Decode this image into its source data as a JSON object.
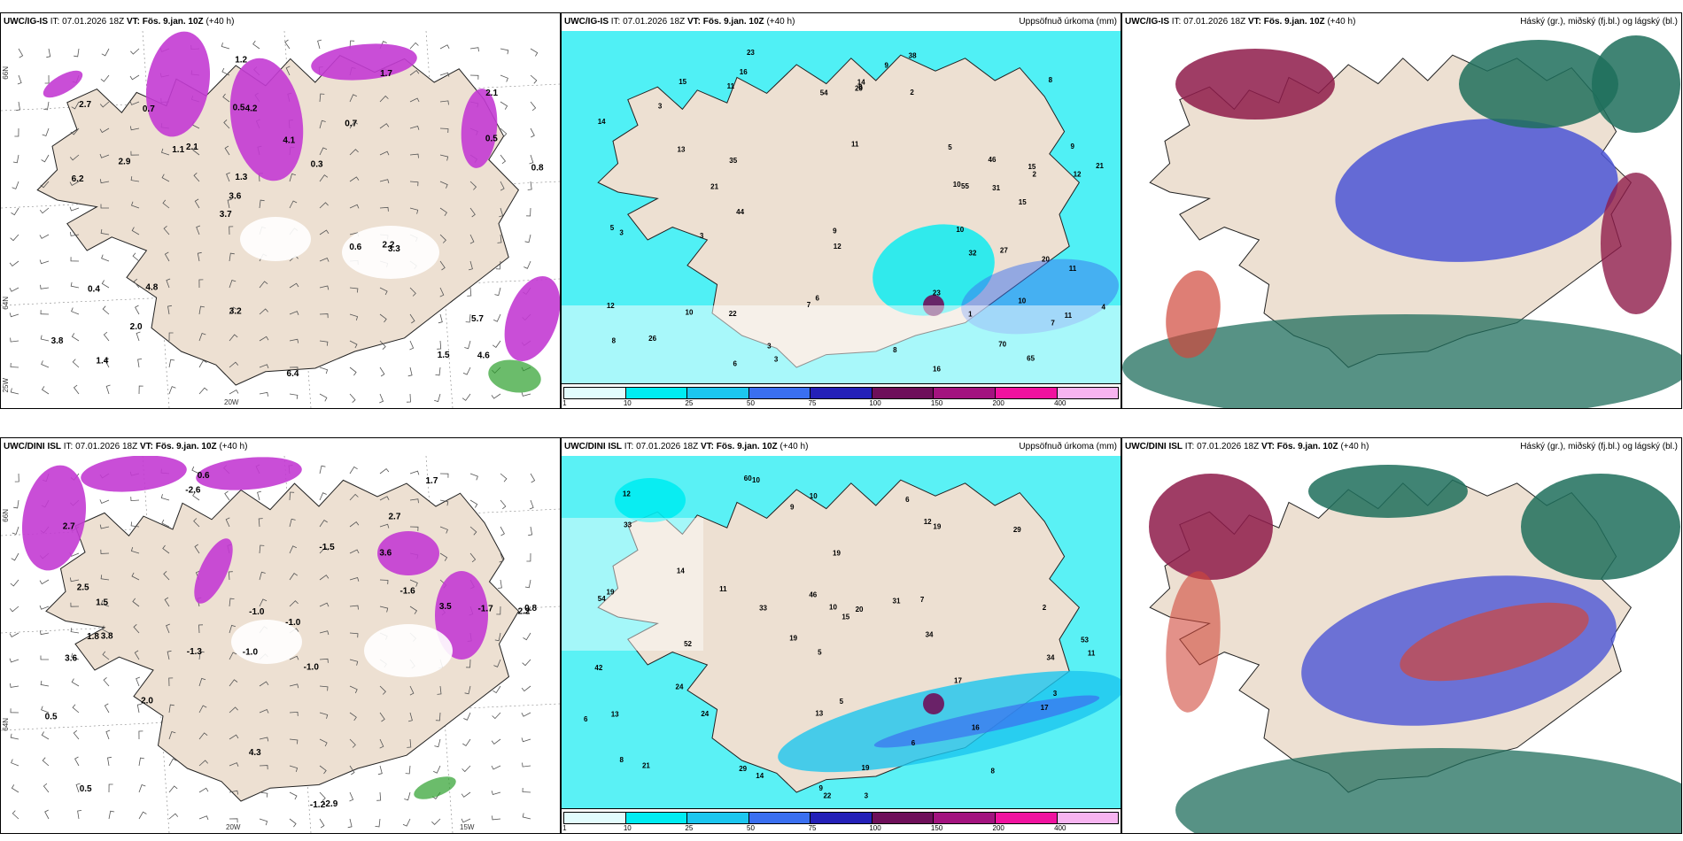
{
  "colors": {
    "land": "#ede0d2",
    "precip_light": "#c8f6f9",
    "precip_cyan": "#00ecf2",
    "snow_magenta": "#c33bd3",
    "cloud_high": "#1f6e5c",
    "cloud_mid": "#8e1b4a",
    "cloud_low": "#4b55d6"
  },
  "panels": [
    {
      "id": "p1",
      "model": "UWC/IG-IS",
      "it_label": "IT:",
      "it_value": "07.01.2026 18Z",
      "vt_label": "VT:",
      "vt_value": "Fös. 9.jan. 10Z",
      "lead": "(+40 h)",
      "right_title": "",
      "axis": {
        "lon_left": "25W",
        "lon_mid": "20W",
        "lat_top": "66N",
        "lat_mid": "64N"
      },
      "labels": [
        "4.6",
        "6.2",
        "2.1",
        "3.7",
        "0.7",
        "1.4",
        "0.5",
        "4.1",
        "0.4",
        "2.1",
        "3.8",
        "2.0",
        "4.2",
        "0.3",
        "3.3",
        "2.7",
        "1.2",
        "0.8",
        "0.6",
        "0.5",
        "3.6",
        "3.2",
        "1.3",
        "0.7",
        "1.7",
        "4.8",
        "1.5",
        "5.7",
        "2.2",
        "6.4",
        "1.1",
        "2.9"
      ]
    },
    {
      "id": "p2",
      "model": "UWC/IG-IS",
      "it_label": "IT:",
      "it_value": "07.01.2026 18Z",
      "vt_label": "VT:",
      "vt_value": "Fös. 9.jan. 10Z",
      "lead": "(+40 h)",
      "right_title": "Uppsöfnuð úrkoma (mm)",
      "colorbar": [
        "1",
        "10",
        "25",
        "50",
        "75",
        "100",
        "150",
        "200",
        "400"
      ],
      "labels": [
        "10",
        "9",
        "11",
        "11",
        "8",
        "16",
        "15",
        "22",
        "8",
        "13",
        "12",
        "14",
        "15",
        "3",
        "12",
        "3",
        "7",
        "11",
        "6",
        "2",
        "5",
        "3",
        "8",
        "10",
        "3",
        "7",
        "9",
        "2",
        "5",
        "4",
        "3",
        "1",
        "6",
        "9",
        "20",
        "70",
        "55",
        "54",
        "65",
        "44",
        "27",
        "31",
        "29",
        "21",
        "11",
        "32",
        "26",
        "38",
        "35",
        "46",
        "10",
        "12",
        "8",
        "21",
        "23",
        "10",
        "23",
        "15",
        "16",
        "14"
      ]
    },
    {
      "id": "p3",
      "model": "UWC/IG-IS",
      "it_label": "IT:",
      "it_value": "07.01.2026 18Z",
      "vt_label": "VT:",
      "vt_value": "Fös. 9.jan. 10Z",
      "lead": "(+40 h)",
      "right_title": "Háský (gr.), miðský (fj.bl.) og lágský (bl.)",
      "labels": []
    },
    {
      "id": "p4",
      "model": "UWC/DINI ISL",
      "it_label": "IT:",
      "it_value": "07.01.2026 18Z",
      "vt_label": "VT:",
      "vt_value": "Fös. 9.jan. 10Z",
      "lead": "(+40 h)",
      "right_title": "",
      "axis": {
        "lon_mid": "20W",
        "lon_right": "15W",
        "lat_top": "66N",
        "lat_mid": "64N"
      },
      "labels": [
        "0.6",
        "2.7",
        "2.2",
        "-1.0",
        "-1.0",
        "3.8",
        "2.7",
        "3.6",
        "3.6",
        "-1.5",
        "-1.0",
        "0.5",
        "-2.6",
        "-1.3",
        "-1.2",
        "-2.9",
        "4.3",
        "1.7",
        "-1.6",
        "2.0",
        "1.5",
        "1.8",
        "0.8",
        "-1.7",
        "0.5",
        "2.5",
        "-1.0",
        "3.5"
      ]
    },
    {
      "id": "p5",
      "model": "UWC/DINI ISL",
      "it_label": "IT:",
      "it_value": "07.01.2026 18Z",
      "vt_label": "VT:",
      "vt_value": "Fös. 9.jan. 10Z",
      "lead": "(+40 h)",
      "right_title": "Uppsöfnuð úrkoma (mm)",
      "colorbar": [
        "1",
        "10",
        "25",
        "50",
        "75",
        "100",
        "150",
        "200",
        "400"
      ],
      "labels": [
        "6",
        "9",
        "10",
        "6",
        "13",
        "14",
        "17",
        "11",
        "8",
        "12",
        "14",
        "42",
        "46",
        "19",
        "20",
        "21",
        "34",
        "3",
        "9",
        "2",
        "5",
        "8",
        "3",
        "6",
        "10",
        "11",
        "7",
        "16",
        "15",
        "17",
        "19",
        "22",
        "12",
        "19",
        "52",
        "60",
        "53",
        "54",
        "24",
        "24",
        "29",
        "31",
        "29",
        "33",
        "34",
        "33",
        "19",
        "19",
        "10",
        "13",
        "5"
      ]
    },
    {
      "id": "p6",
      "model": "UWC/DINI ISL",
      "it_label": "IT:",
      "it_value": "07.01.2026 18Z",
      "vt_label": "VT:",
      "vt_value": "Fös. 9.jan. 10Z",
      "lead": "(+40 h)",
      "right_title": "Háský (gr.), miðský (fj.bl.) og lágský (bl.)",
      "labels": []
    }
  ]
}
